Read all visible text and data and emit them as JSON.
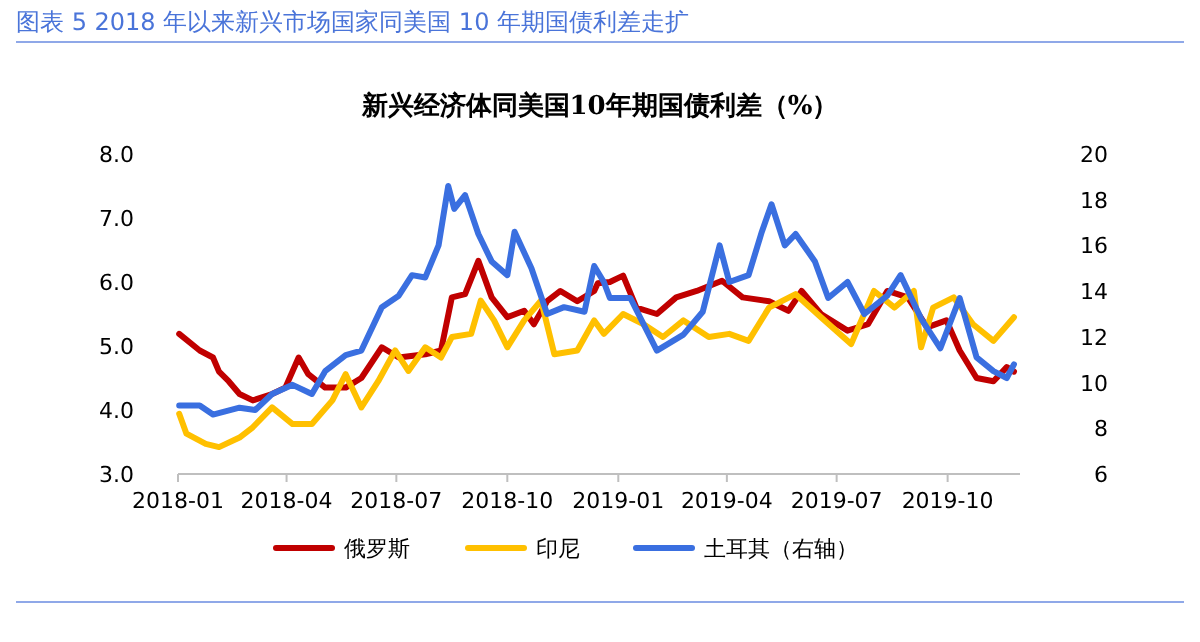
{
  "chart_data": {
    "type": "line",
    "title": "图表 5 2018 年以来新兴市场国家同美国 10 年期国债利差走扩",
    "subtitle": "新兴经济体同美国10年期国债利差（%）",
    "xlim": [
      "2018-01-01",
      "2019-11-30"
    ],
    "xticks": [
      {
        "value": "2018-01-01",
        "label": "2018-01"
      },
      {
        "value": "2018-04-01",
        "label": "2018-04"
      },
      {
        "value": "2018-07-01",
        "label": "2018-07"
      },
      {
        "value": "2018-10-01",
        "label": "2018-10"
      },
      {
        "value": "2019-01-01",
        "label": "2019-01"
      },
      {
        "value": "2019-04-01",
        "label": "2019-04"
      },
      {
        "value": "2019-07-01",
        "label": "2019-07"
      },
      {
        "value": "2019-10-01",
        "label": "2019-10"
      }
    ],
    "ylim": [
      3,
      8
    ],
    "yticks": [
      {
        "value": 3,
        "label": "3.0"
      },
      {
        "value": 4,
        "label": "4.0"
      },
      {
        "value": 5,
        "label": "5.0"
      },
      {
        "value": 6,
        "label": "6.0"
      },
      {
        "value": 7,
        "label": "7.0"
      },
      {
        "value": 8,
        "label": "8.0"
      }
    ],
    "y2lim": [
      6,
      20
    ],
    "y2ticks": [
      6,
      8,
      10,
      12,
      14,
      16,
      18,
      20
    ],
    "grid": false,
    "legend": "bottom",
    "series": [
      {
        "name": "俄罗斯",
        "color": "#c00000",
        "x": [
          "2018-01-02",
          "2018-01-19",
          "2018-01-30",
          "2018-02-04",
          "2018-02-12",
          "2018-02-21",
          "2018-03-04",
          "2018-03-20",
          "2018-03-31",
          "2018-04-11",
          "2018-04-19",
          "2018-05-03",
          "2018-05-20",
          "2018-06-02",
          "2018-06-19",
          "2018-07-03",
          "2018-07-25",
          "2018-08-07",
          "2018-08-16",
          "2018-08-27",
          "2018-09-07",
          "2018-09-18",
          "2018-10-01",
          "2018-10-15",
          "2018-10-23",
          "2018-11-03",
          "2018-11-14",
          "2018-11-28",
          "2018-12-12",
          "2018-12-15",
          "2018-12-25",
          "2019-01-05",
          "2019-01-16",
          "2019-02-02",
          "2019-02-18",
          "2019-03-07",
          "2019-03-28",
          "2019-04-14",
          "2019-05-06",
          "2019-05-22",
          "2019-06-02",
          "2019-06-18",
          "2019-07-10",
          "2019-07-27",
          "2019-08-12",
          "2019-08-29",
          "2019-09-14",
          "2019-09-30",
          "2019-10-11",
          "2019-10-25",
          "2019-11-08",
          "2019-11-19",
          "2019-11-25"
        ],
        "values": [
          5.19,
          4.93,
          4.82,
          4.6,
          4.45,
          4.25,
          4.15,
          4.25,
          4.35,
          4.82,
          4.56,
          4.35,
          4.35,
          4.5,
          4.98,
          4.82,
          4.87,
          4.93,
          5.76,
          5.81,
          6.33,
          5.76,
          5.45,
          5.55,
          5.34,
          5.7,
          5.86,
          5.7,
          5.86,
          5.98,
          6.0,
          6.1,
          5.6,
          5.5,
          5.76,
          5.86,
          6.02,
          5.76,
          5.7,
          5.55,
          5.86,
          5.5,
          5.24,
          5.34,
          5.86,
          5.76,
          5.29,
          5.4,
          4.93,
          4.5,
          4.45,
          4.67,
          4.6
        ]
      },
      {
        "name": "印尼",
        "color": "#ffc000",
        "x": [
          "2018-01-02",
          "2018-01-08",
          "2018-01-24",
          "2018-02-04",
          "2018-02-21",
          "2018-03-04",
          "2018-03-20",
          "2018-04-06",
          "2018-04-22",
          "2018-05-09",
          "2018-05-20",
          "2018-06-02",
          "2018-06-16",
          "2018-06-30",
          "2018-07-11",
          "2018-07-25",
          "2018-08-07",
          "2018-08-16",
          "2018-09-01",
          "2018-09-09",
          "2018-09-20",
          "2018-10-01",
          "2018-10-15",
          "2018-10-29",
          "2018-11-09",
          "2018-11-28",
          "2018-12-12",
          "2018-12-20",
          "2019-01-05",
          "2019-01-22",
          "2019-02-07",
          "2019-02-24",
          "2019-03-17",
          "2019-04-03",
          "2019-04-19",
          "2019-05-06",
          "2019-05-28",
          "2019-06-18",
          "2019-07-13",
          "2019-08-01",
          "2019-08-18",
          "2019-09-03",
          "2019-09-09",
          "2019-09-19",
          "2019-10-06",
          "2019-10-22",
          "2019-11-08",
          "2019-11-25"
        ],
        "values": [
          3.94,
          3.63,
          3.47,
          3.42,
          3.57,
          3.73,
          4.04,
          3.78,
          3.78,
          4.15,
          4.56,
          4.04,
          4.45,
          4.93,
          4.61,
          4.98,
          4.82,
          5.14,
          5.19,
          5.71,
          5.4,
          4.98,
          5.4,
          5.71,
          4.87,
          4.93,
          5.4,
          5.19,
          5.5,
          5.34,
          5.14,
          5.4,
          5.14,
          5.19,
          5.08,
          5.6,
          5.81,
          5.45,
          5.03,
          5.86,
          5.6,
          5.86,
          4.98,
          5.6,
          5.76,
          5.34,
          5.08,
          5.45
        ]
      },
      {
        "name": "土耳其（右轴）",
        "color": "#3a6fe0",
        "axis": "y2",
        "x": [
          "2018-01-02",
          "2018-01-19",
          "2018-01-30",
          "2018-02-21",
          "2018-03-06",
          "2018-03-20",
          "2018-04-06",
          "2018-04-22",
          "2018-05-03",
          "2018-05-20",
          "2018-06-02",
          "2018-06-19",
          "2018-07-03",
          "2018-07-14",
          "2018-07-25",
          "2018-08-05",
          "2018-08-13",
          "2018-08-18",
          "2018-08-27",
          "2018-09-07",
          "2018-09-18",
          "2018-10-01",
          "2018-10-07",
          "2018-10-21",
          "2018-11-03",
          "2018-11-17",
          "2018-12-04",
          "2018-12-12",
          "2018-12-20",
          "2018-12-25",
          "2019-01-11",
          "2019-02-02",
          "2019-02-24",
          "2019-03-12",
          "2019-03-26",
          "2019-04-03",
          "2019-04-19",
          "2019-04-30",
          "2019-05-08",
          "2019-05-19",
          "2019-05-28",
          "2019-06-13",
          "2019-06-24",
          "2019-07-10",
          "2019-07-24",
          "2019-08-12",
          "2019-08-23",
          "2019-09-09",
          "2019-09-25",
          "2019-10-11",
          "2019-10-25",
          "2019-11-08",
          "2019-11-19",
          "2019-11-25"
        ],
        "values": [
          9.0,
          9.0,
          8.6,
          8.9,
          8.8,
          9.5,
          9.9,
          9.5,
          10.5,
          11.2,
          11.4,
          13.3,
          13.8,
          14.7,
          14.6,
          16.0,
          18.6,
          17.6,
          18.2,
          16.5,
          15.3,
          14.7,
          16.6,
          15.0,
          13.0,
          13.3,
          13.1,
          15.1,
          14.4,
          13.7,
          13.7,
          11.4,
          12.1,
          13.1,
          16.0,
          14.4,
          14.7,
          16.6,
          17.8,
          16.0,
          16.5,
          15.3,
          13.7,
          14.4,
          13.0,
          13.8,
          14.7,
          12.8,
          11.5,
          13.7,
          11.1,
          10.5,
          10.2,
          10.8
        ]
      }
    ]
  }
}
